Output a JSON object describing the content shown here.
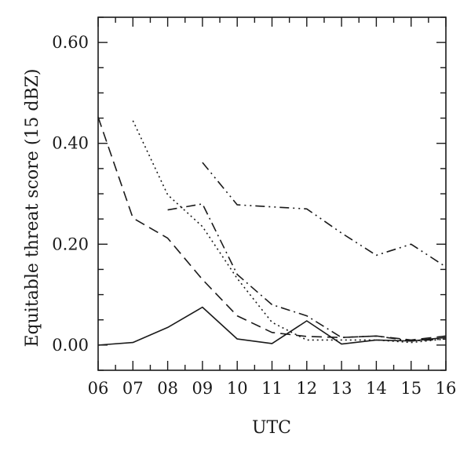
{
  "chart_data": {
    "type": "line",
    "xlabel": "UTC",
    "ylabel": "Equitable threat score (15 dBZ)",
    "xlim": [
      6,
      16
    ],
    "ylim": [
      -0.05,
      0.65
    ],
    "x_ticks": [
      6,
      7,
      8,
      9,
      10,
      11,
      12,
      13,
      14,
      15,
      16
    ],
    "x_tick_labels": [
      "06",
      "07",
      "08",
      "09",
      "10",
      "11",
      "12",
      "13",
      "14",
      "15",
      "16"
    ],
    "y_ticks": [
      0.0,
      0.2,
      0.4,
      0.6
    ],
    "y_tick_labels": [
      "0.00",
      "0.20",
      "0.40",
      "0.60"
    ],
    "grid": false,
    "series": [
      {
        "style": "solid",
        "x": [
          6,
          7,
          8,
          9,
          10,
          11,
          12,
          13,
          14,
          15,
          16
        ],
        "values": [
          0.0,
          0.005,
          0.035,
          0.075,
          0.012,
          0.003,
          0.048,
          0.002,
          0.01,
          0.008,
          0.015
        ]
      },
      {
        "style": "dashed",
        "x": [
          6,
          7,
          8,
          9,
          10,
          11,
          12,
          13,
          14,
          15,
          16
        ],
        "values": [
          0.452,
          0.252,
          0.212,
          0.13,
          0.058,
          0.025,
          0.017,
          0.015,
          0.018,
          0.01,
          0.018
        ]
      },
      {
        "style": "dotted",
        "x": [
          7,
          8,
          9,
          10,
          11,
          12,
          13,
          14,
          15,
          16
        ],
        "values": [
          0.445,
          0.298,
          0.235,
          0.132,
          0.045,
          0.01,
          0.01,
          0.01,
          0.005,
          0.012
        ]
      },
      {
        "style": "dashdot",
        "x": [
          8,
          9,
          10,
          11,
          12,
          13,
          14,
          15,
          16
        ],
        "values": [
          0.268,
          0.28,
          0.14,
          0.08,
          0.058,
          0.015,
          0.018,
          0.008,
          0.012
        ]
      },
      {
        "style": "dashdotdot",
        "x": [
          9,
          10,
          11,
          12,
          13,
          14,
          15,
          16
        ],
        "values": [
          0.362,
          0.278,
          0.274,
          0.27,
          0.222,
          0.178,
          0.2,
          0.155
        ]
      }
    ]
  }
}
